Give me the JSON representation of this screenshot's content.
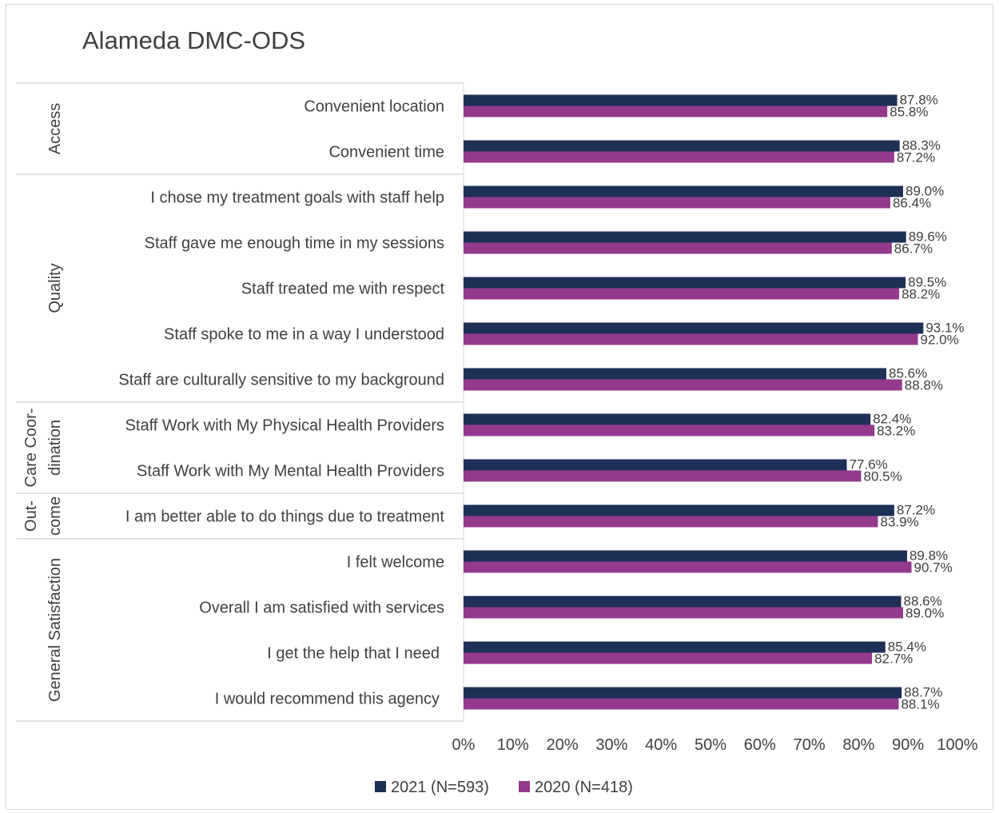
{
  "chart_data": {
    "type": "bar",
    "orientation": "horizontal",
    "title": "Alameda DMC-ODS",
    "groups": [
      {
        "label_lines": [
          "Access"
        ],
        "count": 2
      },
      {
        "label_lines": [
          "Quality"
        ],
        "count": 5
      },
      {
        "label_lines": [
          "Care Coor-",
          "dination"
        ],
        "count": 2
      },
      {
        "label_lines": [
          "Out-",
          "come"
        ],
        "count": 1
      },
      {
        "label_lines": [
          "General Satisfaction"
        ],
        "count": 4
      }
    ],
    "categories": [
      "Convenient location",
      "Convenient time",
      "I chose my treatment goals with staff help",
      "Staff gave me enough time in my sessions",
      "Staff treated me with respect",
      "Staff spoke to me in a way I understood",
      "Staff are culturally sensitive to my background",
      "Staff Work with My Physical Health Providers",
      "Staff Work with My Mental Health Providers",
      "I am better able to do things due to treatment",
      "I felt welcome",
      "Overall I am satisfied with services",
      "I get the help that I need",
      "I would recommend this agency"
    ],
    "series": [
      {
        "name": "2021 (N=593)",
        "color": "#1f3057",
        "values": [
          87.8,
          88.3,
          89.0,
          89.6,
          89.5,
          93.1,
          85.6,
          82.4,
          77.6,
          87.2,
          89.8,
          88.6,
          85.4,
          88.7
        ],
        "labels": [
          "87.8%",
          "88.3%",
          "89.0%",
          "89.6%",
          "89.5%",
          "93.1%",
          "85.6%",
          "82.4%",
          "77.6%",
          "87.2%",
          "89.8%",
          "88.6%",
          "85.4%",
          "88.7%"
        ]
      },
      {
        "name": "2020 (N=418)",
        "color": "#933a8c",
        "values": [
          85.8,
          87.2,
          86.4,
          86.7,
          88.2,
          92.0,
          88.8,
          83.2,
          80.5,
          83.9,
          90.7,
          89.0,
          82.7,
          88.1
        ],
        "labels": [
          "85.8%",
          "87.2%",
          "86.4%",
          "86.7%",
          "88.2%",
          "92.0%",
          "88.8%",
          "83.2%",
          "80.5%",
          "83.9%",
          "90.7%",
          "89.0%",
          "82.7%",
          "88.1%"
        ]
      }
    ],
    "xlim": [
      0,
      100
    ],
    "xticks": [
      "0%",
      "10%",
      "20%",
      "30%",
      "40%",
      "50%",
      "60%",
      "70%",
      "80%",
      "90%",
      "100%"
    ],
    "grid": false,
    "legend_position": "bottom"
  }
}
